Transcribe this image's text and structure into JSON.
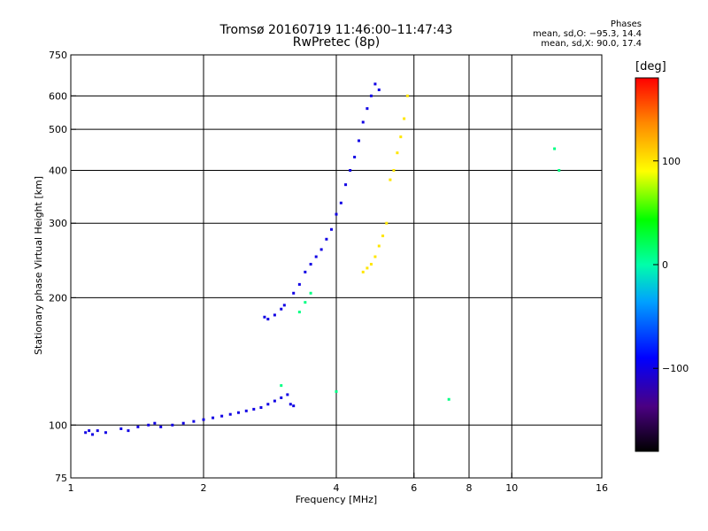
{
  "title_line1": "Tromsø 20160719 11:46:00–11:47:43",
  "title_line2": "RwPretec (8p)",
  "phases": {
    "heading": "Phases",
    "line_o": "mean, sd,O: −95.3, 14.4",
    "line_x": "mean, sd,X:  90.0, 17.4"
  },
  "colorbar": {
    "label": "[deg]",
    "range": [
      -180,
      180
    ],
    "ticks": [
      {
        "v": 100,
        "label": "100"
      },
      {
        "v": 0,
        "label": "0"
      },
      {
        "v": -100,
        "label": "−100"
      }
    ]
  },
  "chart_data": {
    "type": "scatter",
    "xlabel": "Frequency [MHz]",
    "ylabel": "Stationary phase Virtual Height [km]",
    "xscale": "log",
    "yscale": "log",
    "xlim": [
      1,
      16
    ],
    "ylim": [
      75,
      750
    ],
    "xticks": [
      {
        "v": 1,
        "label": "1"
      },
      {
        "v": 2,
        "label": "2"
      },
      {
        "v": 4,
        "label": "4"
      },
      {
        "v": 6,
        "label": "6"
      },
      {
        "v": 8,
        "label": "8"
      },
      {
        "v": 10,
        "label": "10"
      },
      {
        "v": 16,
        "label": "16"
      }
    ],
    "yticks": [
      {
        "v": 75,
        "label": "75"
      },
      {
        "v": 100,
        "label": "100"
      },
      {
        "v": 200,
        "label": "200"
      },
      {
        "v": 300,
        "label": "300"
      },
      {
        "v": 400,
        "label": "400"
      },
      {
        "v": 500,
        "label": "500"
      },
      {
        "v": 600,
        "label": "600"
      },
      {
        "v": 750,
        "label": "750"
      }
    ],
    "grid_x": [
      2,
      4,
      6,
      8,
      10
    ],
    "grid_y": [
      100,
      200,
      300,
      400,
      500,
      600
    ],
    "series": [
      {
        "points": [
          [
            1.08,
            96
          ],
          [
            1.1,
            97
          ],
          [
            1.12,
            95
          ],
          [
            1.15,
            97
          ],
          [
            1.2,
            96
          ],
          [
            1.3,
            98
          ],
          [
            1.35,
            97
          ],
          [
            1.42,
            99
          ],
          [
            1.5,
            100
          ],
          [
            1.55,
            101
          ],
          [
            1.6,
            99
          ],
          [
            1.7,
            100
          ],
          [
            1.8,
            101
          ],
          [
            1.9,
            102
          ],
          [
            2.0,
            103
          ],
          [
            2.1,
            104
          ],
          [
            2.2,
            105
          ],
          [
            2.3,
            106
          ],
          [
            2.4,
            107
          ],
          [
            2.5,
            108
          ],
          [
            2.6,
            109
          ],
          [
            2.7,
            110
          ],
          [
            2.8,
            112
          ],
          [
            2.9,
            114
          ],
          [
            3.0,
            116
          ],
          [
            3.1,
            118
          ],
          [
            3.15,
            112
          ],
          [
            3.2,
            111
          ]
        ],
        "phase": -100
      },
      {
        "points": [
          [
            2.75,
            180
          ],
          [
            2.8,
            178
          ],
          [
            2.9,
            182
          ],
          [
            3.0,
            188
          ],
          [
            3.05,
            192
          ],
          [
            3.2,
            205
          ],
          [
            3.3,
            215
          ],
          [
            3.4,
            230
          ],
          [
            3.5,
            240
          ],
          [
            3.6,
            250
          ],
          [
            3.7,
            260
          ],
          [
            3.8,
            275
          ],
          [
            3.9,
            290
          ],
          [
            4.0,
            315
          ],
          [
            4.1,
            335
          ],
          [
            4.2,
            370
          ],
          [
            4.3,
            400
          ],
          [
            4.4,
            430
          ],
          [
            4.5,
            470
          ],
          [
            4.6,
            520
          ],
          [
            4.7,
            560
          ],
          [
            4.8,
            600
          ],
          [
            4.9,
            640
          ],
          [
            5.0,
            620
          ]
        ],
        "phase": -100
      },
      {
        "points": [
          [
            4.6,
            230
          ],
          [
            4.7,
            235
          ],
          [
            4.8,
            240
          ],
          [
            4.9,
            250
          ],
          [
            5.0,
            265
          ],
          [
            5.1,
            280
          ],
          [
            5.2,
            300
          ],
          [
            5.3,
            380
          ],
          [
            5.4,
            400
          ],
          [
            5.5,
            440
          ],
          [
            5.6,
            480
          ],
          [
            5.7,
            530
          ],
          [
            5.8,
            600
          ]
        ],
        "phase": 100
      },
      {
        "points": [
          [
            3.3,
            185
          ],
          [
            3.4,
            195
          ],
          [
            3.5,
            205
          ],
          [
            3.0,
            124
          ],
          [
            12.5,
            450
          ],
          [
            12.8,
            400
          ],
          [
            7.2,
            115
          ],
          [
            4.0,
            120
          ]
        ],
        "phase": 10
      }
    ]
  }
}
